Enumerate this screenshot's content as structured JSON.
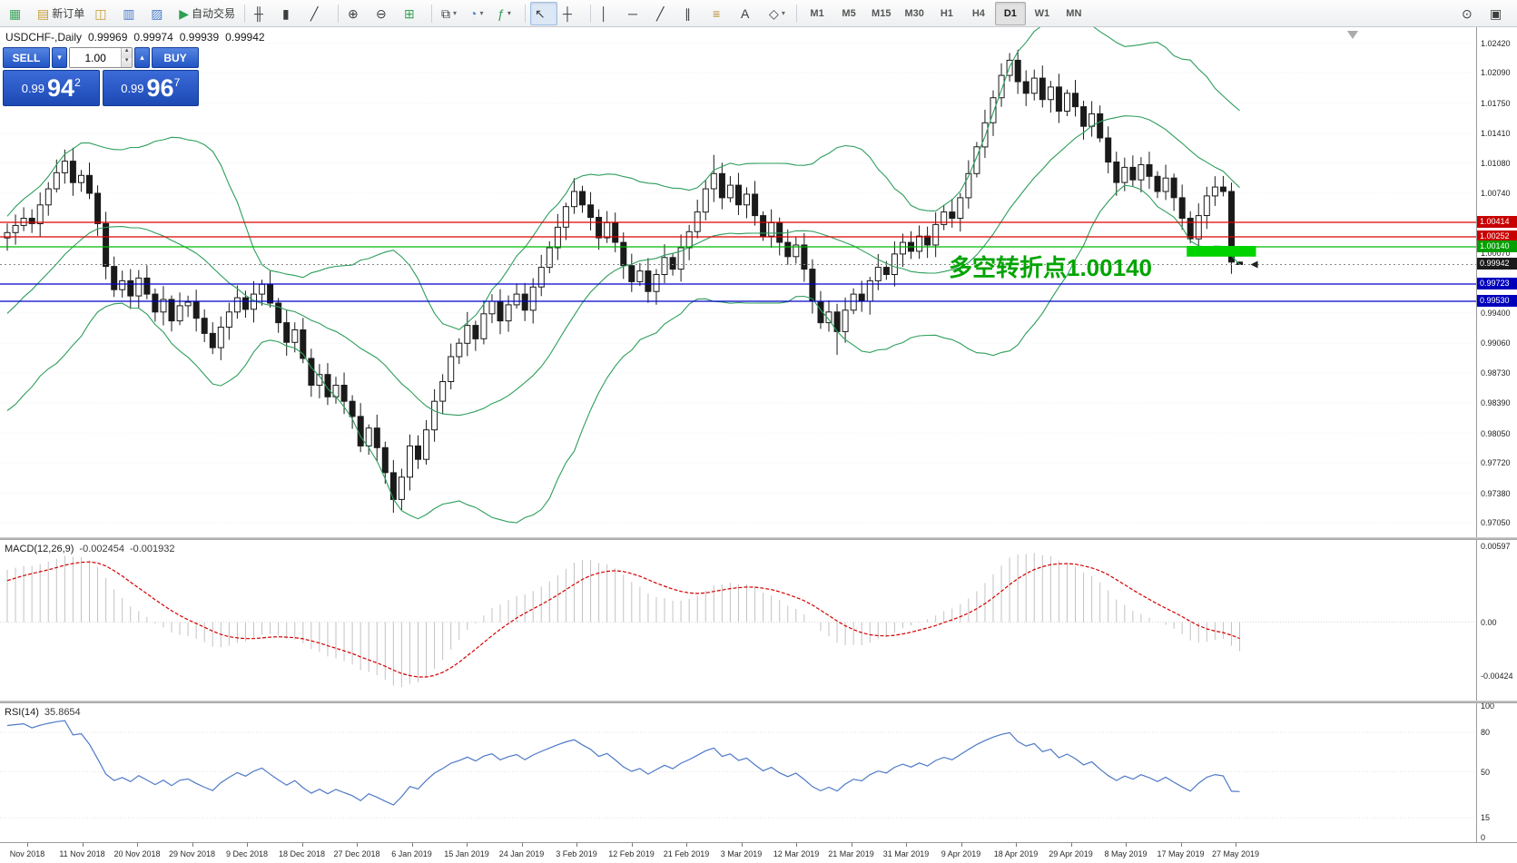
{
  "toolbar": {
    "groups": [
      {
        "name": "toolbar-group-file",
        "items": [
          {
            "name": "terminal-icon",
            "glyph": "▦",
            "color": "#3aa35a"
          },
          {
            "name": "new-order-button",
            "icon_name": "new-order-icon",
            "glyph": "▤",
            "color": "#c79b2e",
            "label": "新订单"
          },
          {
            "name": "chart-window-icon",
            "glyph": "◫",
            "color": "#c79b2e"
          },
          {
            "name": "profiles-icon",
            "glyph": "▥",
            "color": "#4a7dd0"
          },
          {
            "name": "market-watch-icon",
            "glyph": "▨",
            "color": "#4a7dd0"
          },
          {
            "name": "auto-trading-button",
            "icon_name": "auto-trading-icon",
            "glyph": "▶",
            "color": "#2fa052",
            "label": "自动交易"
          }
        ]
      },
      {
        "name": "toolbar-group-chart-type",
        "items": [
          {
            "name": "bar-chart-icon",
            "glyph": "╫"
          },
          {
            "name": "candlestick-chart-icon",
            "glyph": "▮"
          },
          {
            "name": "line-chart-icon",
            "glyph": "╱"
          }
        ]
      },
      {
        "name": "toolbar-group-zoom",
        "items": [
          {
            "name": "zoom-in-icon",
            "glyph": "⊕"
          },
          {
            "name": "zoom-out-icon",
            "glyph": "⊖"
          },
          {
            "name": "grid-icon",
            "glyph": "⊞",
            "color": "#3aa35a"
          }
        ]
      },
      {
        "name": "toolbar-group-windows",
        "items": [
          {
            "name": "tile-windows-icon",
            "glyph": "⧉",
            "caret": true
          },
          {
            "name": "period-icon",
            "glyph": "◔",
            "color": "#4a7dd0",
            "caret": true
          },
          {
            "name": "indicators-icon",
            "glyph": "ƒ",
            "color": "#2fa052",
            "caret": true
          }
        ]
      },
      {
        "name": "toolbar-group-cursor",
        "items": [
          {
            "name": "cursor-icon",
            "glyph": "↖",
            "active": true
          },
          {
            "name": "crosshair-icon",
            "glyph": "┼"
          }
        ]
      },
      {
        "name": "toolbar-group-objects",
        "items": [
          {
            "name": "vertical-line-icon",
            "glyph": "│"
          },
          {
            "name": "horizontal-line-icon",
            "glyph": "─"
          },
          {
            "name": "trendline-icon",
            "glyph": "╱"
          },
          {
            "name": "equidistant-channel-icon",
            "glyph": "∥"
          },
          {
            "name": "fibonacci-icon",
            "glyph": "≡",
            "color": "#b58a2a"
          },
          {
            "name": "text-label-icon",
            "glyph": "A"
          },
          {
            "name": "arrows-icon",
            "glyph": "◇",
            "caret": true
          }
        ]
      },
      {
        "name": "toolbar-group-timeframes",
        "tf": true
      },
      {
        "name": "toolbar-group-right",
        "right": true,
        "items": [
          {
            "name": "search-icon",
            "glyph": "⊙"
          },
          {
            "name": "layout-icon",
            "glyph": "▣"
          }
        ]
      }
    ],
    "timeframes": [
      "M1",
      "M5",
      "M15",
      "M30",
      "H1",
      "H4",
      "D1",
      "W1",
      "MN"
    ],
    "active_timeframe": "D1"
  },
  "chart_header": {
    "symbol_period": "USDCHF-,Daily",
    "open": "0.99969",
    "high": "0.99974",
    "low": "0.99939",
    "close": "0.99942"
  },
  "trade_panel": {
    "sell_label": "SELL",
    "buy_label": "BUY",
    "volume": "1.00",
    "sell_price": {
      "big": "0.99",
      "pips": "94",
      "point": "2"
    },
    "buy_price": {
      "big": "0.99",
      "pips": "96",
      "point": "7"
    }
  },
  "annotation": {
    "text": "多空转折点1.00140",
    "color": "#00A400"
  },
  "chart_data": {
    "type": "candlestick",
    "symbol": "USDCHF",
    "timeframe": "Daily",
    "current_price": 0.99942,
    "ylim": [
      0.96887,
      1.026
    ],
    "y_axis_labels": [
      "1.02420",
      "1.02090",
      "1.01750",
      "1.01410",
      "1.01080",
      "1.00740",
      "1.00070",
      "0.99400",
      "0.99060",
      "0.98730",
      "0.98390",
      "0.98050",
      "0.97720",
      "0.97380",
      "0.97050"
    ],
    "price_tags": [
      {
        "text": "1.00414",
        "color": "#C80000"
      },
      {
        "text": "1.00252",
        "color": "#C80000"
      },
      {
        "text": "1.00140",
        "color": "#00A000"
      },
      {
        "text": "0.99942",
        "color": "#1a1a1a"
      },
      {
        "text": "0.99723",
        "color": "#0000BB"
      },
      {
        "text": "0.99530",
        "color": "#0000BB"
      }
    ],
    "hlines": [
      {
        "price": 1.00414,
        "color": "#DD0000"
      },
      {
        "price": 1.00252,
        "color": "#DD0000"
      },
      {
        "price": 1.0014,
        "color": "#00BB00"
      },
      {
        "price": 0.99723,
        "color": "#0000CC"
      },
      {
        "price": 0.9953,
        "color": "#0000CC"
      }
    ],
    "highlight_zone": {
      "from_index": 144,
      "price_top": 1.0015,
      "price_bottom": 1.0003,
      "color": "#00D300"
    },
    "x_labels": [
      "Nov 2018",
      "11 Nov 2018",
      "20 Nov 2018",
      "29 Nov 2018",
      "9 Dec 2018",
      "18 Dec 2018",
      "27 Dec 2018",
      "6 Jan 2019",
      "15 Jan 2019",
      "24 Jan 2019",
      "3 Feb 2019",
      "12 Feb 2019",
      "21 Feb 2019",
      "3 Mar 2019",
      "12 Mar 2019",
      "21 Mar 2019",
      "31 Mar 2019",
      "9 Apr 2019",
      "18 Apr 2019",
      "29 Apr 2019",
      "8 May 2019",
      "17 May 2019",
      "27 May 2019"
    ],
    "warmup_closes": [
      0.9848,
      0.9861,
      0.9855,
      0.9876,
      0.9868,
      0.9889,
      0.9903,
      0.9896,
      0.9917,
      0.9931,
      0.9925,
      0.9946,
      0.9959,
      0.9952,
      0.9973,
      0.9987,
      0.998,
      1.0001,
      1.0014,
      1.0024
    ],
    "closes": [
      1.003,
      1.0038,
      1.0046,
      1.004,
      1.0061,
      1.0079,
      1.0097,
      1.011,
      1.0086,
      1.0094,
      1.0074,
      1.004,
      0.9992,
      0.9966,
      0.9976,
      0.9959,
      0.9979,
      0.9961,
      0.9941,
      0.9955,
      0.9931,
      0.9948,
      0.9952,
      0.9934,
      0.9917,
      0.9901,
      0.9924,
      0.9941,
      0.9957,
      0.9944,
      0.9961,
      0.9972,
      0.9951,
      0.9929,
      0.9907,
      0.9921,
      0.9889,
      0.9859,
      0.9871,
      0.9846,
      0.9859,
      0.9841,
      0.9824,
      0.9791,
      0.9811,
      0.9789,
      0.9761,
      0.9731,
      0.9756,
      0.9791,
      0.9776,
      0.9809,
      0.9841,
      0.9863,
      0.9891,
      0.9906,
      0.9926,
      0.9911,
      0.9939,
      0.9953,
      0.9931,
      0.9949,
      0.9961,
      0.9943,
      0.9969,
      0.9991,
      1.0013,
      1.0036,
      1.0059,
      1.0076,
      1.0061,
      1.0047,
      1.0024,
      1.0041,
      1.0019,
      0.9993,
      0.9975,
      0.9987,
      0.9964,
      0.9983,
      1.0002,
      0.9989,
      1.0013,
      1.0031,
      1.0053,
      1.0079,
      1.0096,
      1.0069,
      1.0083,
      1.0061,
      1.0073,
      1.0049,
      1.0026,
      1.0041,
      1.0019,
      1.0003,
      1.0016,
      0.9989,
      0.9953,
      0.9929,
      0.9941,
      0.9919,
      0.9943,
      0.9961,
      0.9953,
      0.9976,
      0.9991,
      0.9983,
      1.0006,
      1.0019,
      1.0009,
      1.0026,
      1.0016,
      1.0039,
      1.0053,
      1.0046,
      1.0069,
      1.0096,
      1.0126,
      1.0153,
      1.0181,
      1.0206,
      1.0223,
      1.0199,
      1.0186,
      1.0203,
      1.0179,
      1.0193,
      1.0166,
      1.0186,
      1.0171,
      1.0149,
      1.0163,
      1.0136,
      1.0109,
      1.0086,
      1.0103,
      1.0089,
      1.0106,
      1.0093,
      1.0076,
      1.0091,
      1.0069,
      1.0046,
      1.0023,
      1.0049,
      1.0071,
      1.0081,
      1.0076,
      0.99969,
      0.99942
    ],
    "spike_overrides": {
      "7": {
        "high": 1.0123
      },
      "47": {
        "low": 0.9716
      },
      "86": {
        "high": 1.0117
      },
      "101": {
        "low": 0.9893
      },
      "122": {
        "high": 1.0231
      },
      "150": {
        "high": 0.99974,
        "low": 0.99939
      }
    },
    "indicators": {
      "bollinger": {
        "period": 20,
        "deviation": 2,
        "color": "#2E9E5B"
      },
      "macd": {
        "label": "MACD(12,26,9)",
        "value_main": "-0.002454",
        "value_signal": "-0.001932",
        "ylim": [
          -0.0062,
          0.0065
        ],
        "scale_labels": [
          "0.00597",
          "0.00",
          "-0.00424"
        ],
        "hist_color": "#C2C2C2",
        "signal_color": "#D40000"
      },
      "rsi": {
        "label": "RSI(14)",
        "value": "35.8654",
        "ylim": [
          0,
          100
        ],
        "scale_labels": [
          "100",
          "80",
          "50",
          "15",
          "0"
        ],
        "levels": [
          80,
          50,
          15
        ],
        "color": "#4E79C7"
      }
    }
  }
}
